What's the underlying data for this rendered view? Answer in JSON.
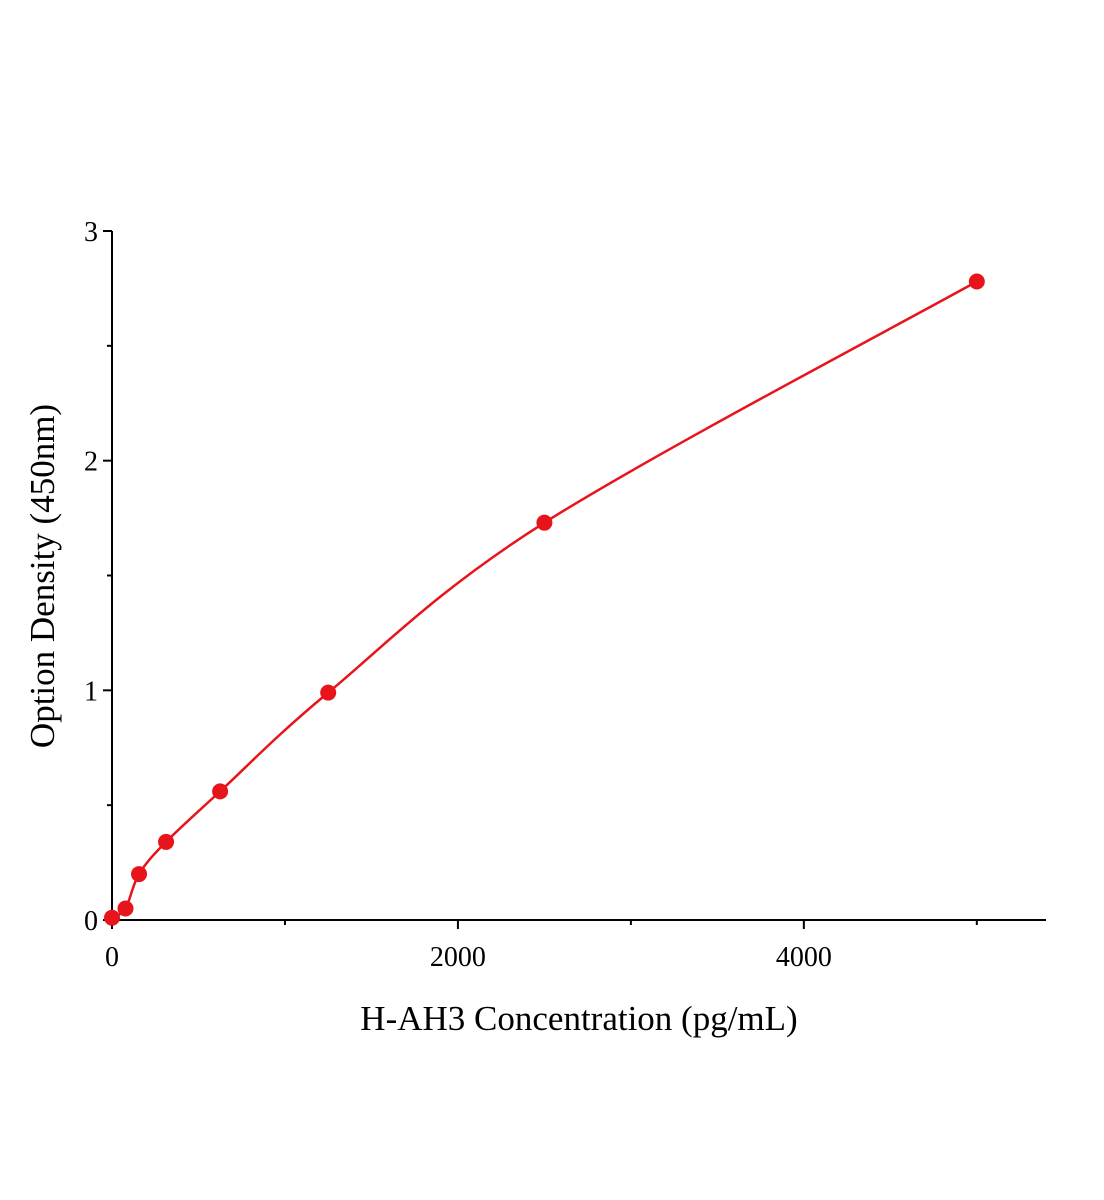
{
  "chart_data": {
    "type": "scatter-line",
    "x_label": "H-AH3 Concentration (pg/mL)",
    "y_label": "Option Density (450nm)",
    "series": [
      {
        "color": "#e8141c",
        "x": [
          0,
          78.125,
          156.25,
          312.5,
          625,
          1250,
          2500,
          5000
        ],
        "values": [
          0.01,
          0.05,
          0.2,
          0.34,
          0.56,
          0.99,
          1.73,
          2.78
        ]
      }
    ],
    "xlim": [
      0,
      5400
    ],
    "xticks": [
      0,
      2000,
      4000
    ],
    "xminorticks": [
      1000,
      3000,
      5000
    ],
    "ylim": [
      0,
      3
    ],
    "yticks": [
      0,
      1,
      2,
      3
    ],
    "yminorticks": [
      0.5,
      1.5,
      2.5
    ]
  }
}
